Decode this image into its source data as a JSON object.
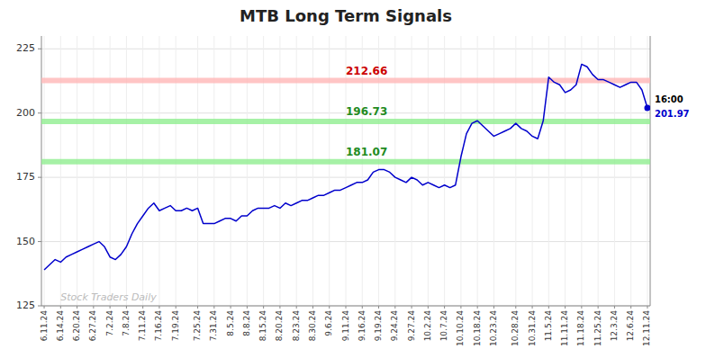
{
  "chart_data": {
    "type": "line",
    "title": "MTB Long Term Signals",
    "watermark": "Stock Traders Daily",
    "categories": [
      "6.11.24",
      null,
      null,
      "6.14.24",
      null,
      null,
      "6.20.24",
      null,
      null,
      "6.27.24",
      null,
      null,
      "7.2.24",
      null,
      null,
      "7.8.24",
      null,
      null,
      "7.11.24",
      null,
      null,
      "7.16.24",
      null,
      null,
      "7.19.24",
      null,
      null,
      null,
      "7.25.24",
      null,
      null,
      "7.31.24",
      null,
      null,
      "8.5.24",
      null,
      null,
      "8.8.24",
      null,
      null,
      "8.15.24",
      null,
      null,
      "8.20.24",
      null,
      null,
      "8.23.24",
      null,
      null,
      "8.30.24",
      null,
      null,
      "9.6.24",
      null,
      null,
      "9.11.24",
      null,
      null,
      "9.16.24",
      null,
      null,
      "9.19.24",
      null,
      null,
      "9.24.24",
      null,
      null,
      "9.27.24",
      null,
      null,
      "10.2.24",
      null,
      null,
      "10.7.24",
      null,
      null,
      "10.10.24",
      null,
      null,
      "10.18.24",
      null,
      null,
      "10.23.24",
      null,
      null,
      null,
      "10.28.24",
      null,
      null,
      "10.31.24",
      null,
      null,
      "11.5.24",
      null,
      null,
      "11.11.24",
      null,
      null,
      "11.18.24",
      null,
      null,
      "11.25.24",
      null,
      null,
      "12.3.24",
      null,
      null,
      "12.6.24",
      null,
      null,
      "12.11.24"
    ],
    "values": [
      139,
      141,
      143,
      142,
      144,
      145,
      146,
      147,
      148,
      149,
      150,
      148,
      144,
      143,
      145,
      148,
      153,
      157,
      160,
      163,
      165,
      162,
      163,
      164,
      162,
      162,
      163,
      162,
      163,
      157,
      157,
      157,
      158,
      159,
      159,
      158,
      160,
      160,
      162,
      163,
      163,
      163,
      164,
      163,
      165,
      164,
      165,
      166,
      166,
      167,
      168,
      168,
      169,
      170,
      170,
      171,
      172,
      173,
      173,
      174,
      177,
      178,
      178,
      177,
      175,
      174,
      173,
      175,
      174,
      172,
      173,
      172,
      171,
      172,
      171,
      172,
      183,
      192,
      196,
      197,
      195,
      193,
      191,
      192,
      193,
      194,
      196,
      194,
      193,
      191,
      190,
      197,
      214,
      212,
      211,
      208,
      209,
      211,
      219,
      218,
      215,
      213,
      213,
      212,
      211,
      210,
      211,
      212,
      212,
      209,
      202
    ],
    "color": "#0000cc",
    "reference_lines": [
      {
        "value": 212.66,
        "color": "#ffb6b6",
        "label_color": "#cc0000"
      },
      {
        "value": 196.73,
        "color": "#90ee90",
        "label_color": "#228B22"
      },
      {
        "value": 181.07,
        "color": "#90ee90",
        "label_color": "#228B22"
      }
    ],
    "annotations": [
      {
        "text": "16:00",
        "color": "#000000"
      },
      {
        "text": "201.97",
        "color": "#0000cc"
      }
    ],
    "ylim": [
      125,
      230
    ],
    "yticks": [
      125,
      150,
      175,
      200,
      225
    ],
    "grid": true
  }
}
